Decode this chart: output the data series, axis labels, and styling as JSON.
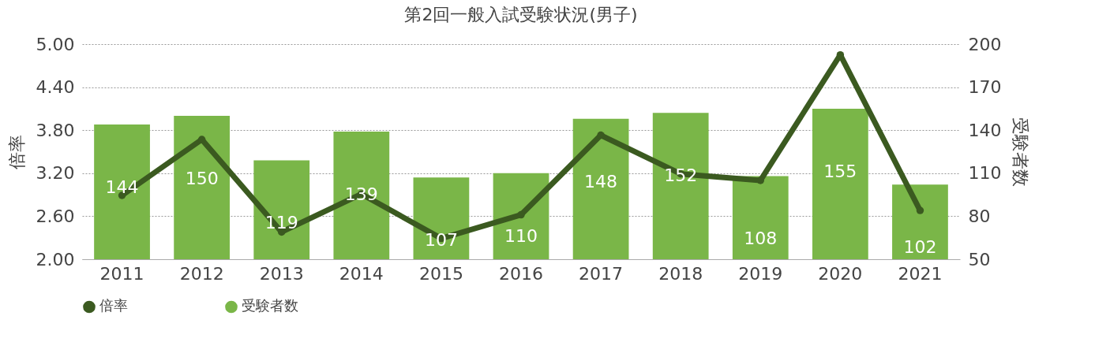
{
  "chart_data": {
    "type": "bar",
    "title": "第2回一般入試受験状況(男子)",
    "ylabel": "倍率",
    "y2label": "受験者数",
    "categories": [
      "2011",
      "2012",
      "2013",
      "2014",
      "2015",
      "2016",
      "2017",
      "2018",
      "2019",
      "2020",
      "2021"
    ],
    "series": [
      {
        "name": "倍率",
        "type": "line",
        "color": "#3b5a20",
        "values": [
          2.89,
          3.67,
          2.38,
          2.91,
          2.29,
          2.62,
          3.73,
          3.19,
          3.1,
          4.85,
          2.68
        ]
      },
      {
        "name": "受験者数",
        "axis": "y2",
        "color": "#7ab648",
        "values": [
          144,
          150,
          119,
          139,
          107,
          110,
          148,
          152,
          108,
          155,
          102
        ],
        "value_labels": [
          "144",
          "150",
          "119",
          "139",
          "107",
          "110",
          "148",
          "152",
          "108",
          "155",
          "102"
        ]
      }
    ],
    "ylim": [
      2,
      5
    ],
    "yticks": [
      {
        "value": 2,
        "label": "2.00"
      },
      {
        "value": 2.6,
        "label": "2.60"
      },
      {
        "value": 3.2,
        "label": "3.20"
      },
      {
        "value": 3.8,
        "label": "3.80"
      },
      {
        "value": 4.4,
        "label": "4.40"
      },
      {
        "value": 5,
        "label": "5.00"
      }
    ],
    "y2lim": [
      50,
      200
    ],
    "y2ticks": [
      50,
      80,
      110,
      140,
      170,
      200
    ],
    "grid": "y",
    "legend": "bottom",
    "marker": "circle",
    "line_style": "solid"
  }
}
